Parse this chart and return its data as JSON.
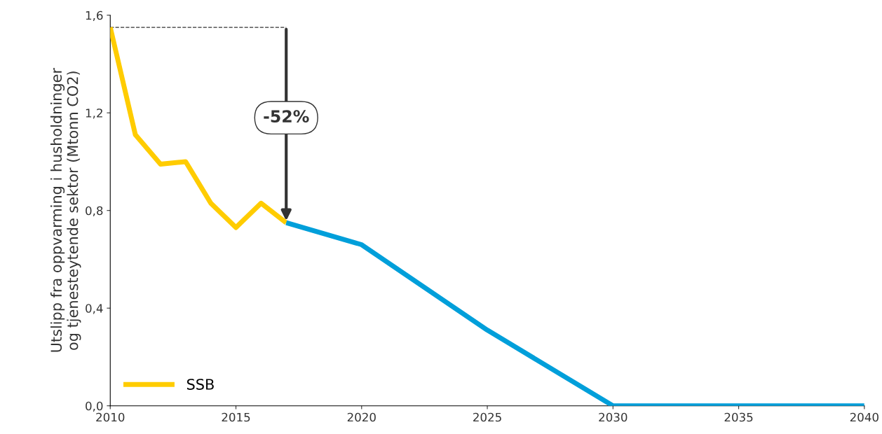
{
  "chart_data": {
    "type": "line",
    "ylabel": "Utslipp fra oppvarming i husholdninger\nog tjenesteytende sektor (Mtonn CO2)",
    "series": [
      {
        "name": "SSB",
        "color": "#ffcc00",
        "x": [
          2010,
          2011,
          2012,
          2013,
          2014,
          2015,
          2016,
          2017
        ],
        "values": [
          1.55,
          1.11,
          0.99,
          1.0,
          0.83,
          0.73,
          0.83,
          0.75
        ]
      },
      {
        "color": "#009fda",
        "x": [
          2017,
          2020,
          2025,
          2030,
          2040
        ],
        "values": [
          0.75,
          0.66,
          0.31,
          0.0,
          0.0
        ]
      }
    ],
    "xlim": [
      2010,
      2040
    ],
    "xticks": [
      2010,
      2015,
      2020,
      2025,
      2030,
      2035,
      2040
    ],
    "ylim": [
      0,
      1.6
    ],
    "yticks": [
      {
        "value": 0,
        "label": "0,0"
      },
      {
        "value": 0.4,
        "label": "0,4"
      },
      {
        "value": 0.8,
        "label": "0,8"
      },
      {
        "value": 1.2,
        "label": "1,2"
      },
      {
        "value": 1.6,
        "label": "1,6"
      }
    ],
    "annotations": [
      "-52%"
    ],
    "grid": false,
    "legend": "bottom left",
    "marker": "none",
    "line_style": "solid"
  }
}
